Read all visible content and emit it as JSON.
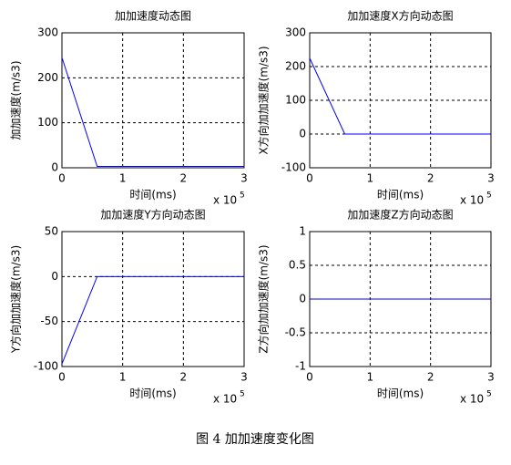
{
  "chart_data": [
    {
      "type": "line",
      "title": "加加速度动态图",
      "xlabel": "时间(ms)",
      "ylabel": "加加速度(m/s3)",
      "x_multiplier": "x 10",
      "x_multiplier_exponent": "5",
      "xlim": [
        0,
        3
      ],
      "xticks": [
        0,
        1,
        2,
        3
      ],
      "ylim": [
        0,
        300
      ],
      "yticks": [
        0,
        100,
        200,
        300
      ],
      "grid": true,
      "series": [
        {
          "color": "#0000ff",
          "x": [
            0,
            0.58,
            3
          ],
          "values": [
            245,
            3,
            3
          ]
        }
      ]
    },
    {
      "type": "line",
      "title": "加加速度X方向动态图",
      "xlabel": "时间(ms)",
      "ylabel": "X方向加加速度(m/s3)",
      "x_multiplier": "x 10",
      "x_multiplier_exponent": "5",
      "xlim": [
        0,
        3
      ],
      "xticks": [
        0,
        1,
        2,
        3
      ],
      "ylim": [
        -100,
        300
      ],
      "yticks": [
        -100,
        0,
        100,
        200,
        300
      ],
      "grid": true,
      "series": [
        {
          "color": "#0000ff",
          "x": [
            0,
            0.58,
            3
          ],
          "values": [
            225,
            0,
            0
          ]
        }
      ]
    },
    {
      "type": "line",
      "title": "加加速度Y方向动态图",
      "xlabel": "时间(ms)",
      "ylabel": "Y方向加加速度(m/s3)",
      "x_multiplier": "x 10",
      "x_multiplier_exponent": "5",
      "xlim": [
        0,
        3
      ],
      "xticks": [
        0,
        1,
        2,
        3
      ],
      "ylim": [
        -100,
        50
      ],
      "yticks": [
        -100,
        -50,
        0,
        50
      ],
      "grid": true,
      "series": [
        {
          "color": "#0000ff",
          "x": [
            0,
            0.58,
            3
          ],
          "values": [
            -97,
            0,
            0
          ]
        }
      ]
    },
    {
      "type": "line",
      "title": "加加速度Z方向动态图",
      "xlabel": "时间(ms)",
      "ylabel": "Z方向加加速度(m/s3)",
      "x_multiplier": "x 10",
      "x_multiplier_exponent": "5",
      "xlim": [
        0,
        3
      ],
      "xticks": [
        0,
        1,
        2,
        3
      ],
      "ylim": [
        -1,
        1
      ],
      "yticks": [
        -1,
        -0.5,
        0,
        0.5,
        1
      ],
      "grid": true,
      "series": [
        {
          "color": "#0000ff",
          "x": [
            0,
            3
          ],
          "values": [
            0,
            0
          ]
        }
      ]
    }
  ],
  "caption": "图 4  加加速度变化图"
}
